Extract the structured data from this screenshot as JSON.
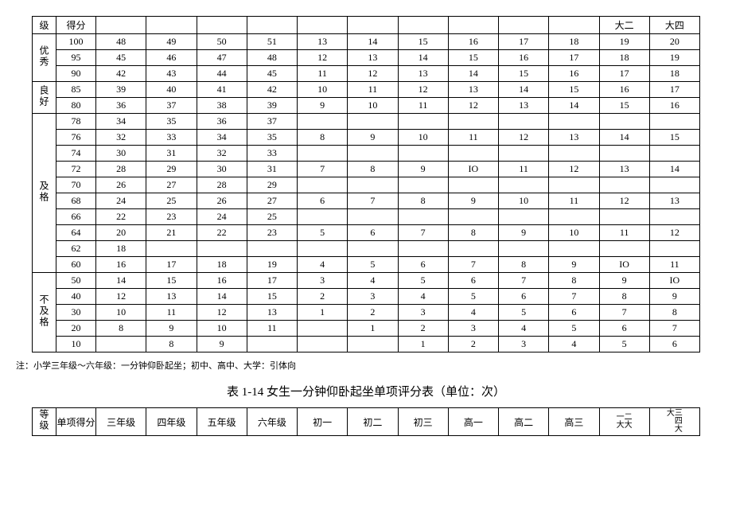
{
  "table1": {
    "header": {
      "level": "级",
      "score": "得分",
      "cols_extra": [
        "大二",
        "大四"
      ]
    },
    "groups": [
      {
        "label": "优秀",
        "rows": [
          {
            "score": "100",
            "vals": [
              "48",
              "49",
              "50",
              "51",
              "13",
              "14",
              "15",
              "16",
              "17",
              "18",
              "19",
              "20"
            ]
          },
          {
            "score": "95",
            "vals": [
              "45",
              "46",
              "47",
              "48",
              "12",
              "13",
              "14",
              "15",
              "16",
              "17",
              "18",
              "19"
            ]
          },
          {
            "score": "90",
            "vals": [
              "42",
              "43",
              "44",
              "45",
              "11",
              "12",
              "13",
              "14",
              "15",
              "16",
              "17",
              "18"
            ]
          }
        ]
      },
      {
        "label": "良好",
        "rows": [
          {
            "score": "85",
            "vals": [
              "39",
              "40",
              "41",
              "42",
              "10",
              "11",
              "12",
              "13",
              "14",
              "15",
              "16",
              "17"
            ]
          },
          {
            "score": "80",
            "vals": [
              "36",
              "37",
              "38",
              "39",
              "9",
              "10",
              "11",
              "12",
              "13",
              "14",
              "15",
              "16"
            ]
          }
        ]
      },
      {
        "label": "及格",
        "rows": [
          {
            "score": "78",
            "vals": [
              "34",
              "35",
              "36",
              "37",
              "",
              "",
              "",
              "",
              "",
              "",
              "",
              ""
            ]
          },
          {
            "score": "76",
            "vals": [
              "32",
              "33",
              "34",
              "35",
              "8",
              "9",
              "10",
              "11",
              "12",
              "13",
              "14",
              "15"
            ]
          },
          {
            "score": "74",
            "vals": [
              "30",
              "31",
              "32",
              "33",
              "",
              "",
              "",
              "",
              "",
              "",
              "",
              ""
            ]
          },
          {
            "score": "72",
            "vals": [
              "28",
              "29",
              "30",
              "31",
              "7",
              "8",
              "9",
              "IO",
              "11",
              "12",
              "13",
              "14"
            ]
          },
          {
            "score": "70",
            "vals": [
              "26",
              "27",
              "28",
              "29",
              "",
              "",
              "",
              "",
              "",
              "",
              "",
              ""
            ]
          },
          {
            "score": "68",
            "vals": [
              "24",
              "25",
              "26",
              "27",
              "6",
              "7",
              "8",
              "9",
              "10",
              "11",
              "12",
              "13"
            ]
          },
          {
            "score": "66",
            "vals": [
              "22",
              "23",
              "24",
              "25",
              "",
              "",
              "",
              "",
              "",
              "",
              "",
              ""
            ]
          },
          {
            "score": "64",
            "vals": [
              "20",
              "21",
              "22",
              "23",
              "5",
              "6",
              "7",
              "8",
              "9",
              "10",
              "11",
              "12"
            ]
          },
          {
            "score": "62",
            "vals": [
              "18",
              "",
              "",
              "",
              "",
              "",
              "",
              "",
              "",
              "",
              "",
              ""
            ]
          },
          {
            "score": "60",
            "vals": [
              "16",
              "17",
              "18",
              "19",
              "4",
              "5",
              "6",
              "7",
              "8",
              "9",
              "IO",
              "11"
            ]
          }
        ]
      },
      {
        "label": "不及格",
        "rows": [
          {
            "score": "50",
            "vals": [
              "14",
              "15",
              "16",
              "17",
              "3",
              "4",
              "5",
              "6",
              "7",
              "8",
              "9",
              "IO"
            ]
          },
          {
            "score": "40",
            "vals": [
              "12",
              "13",
              "14",
              "15",
              "2",
              "3",
              "4",
              "5",
              "6",
              "7",
              "8",
              "9"
            ]
          },
          {
            "score": "30",
            "vals": [
              "10",
              "11",
              "12",
              "13",
              "1",
              "2",
              "3",
              "4",
              "5",
              "6",
              "7",
              "8"
            ]
          },
          {
            "score": "20",
            "vals": [
              "8",
              "9",
              "10",
              "11",
              "",
              "1",
              "2",
              "3",
              "4",
              "5",
              "6",
              "7"
            ]
          },
          {
            "score": "10",
            "vals": [
              "",
              "8",
              "9",
              "",
              "",
              "",
              "1",
              "2",
              "3",
              "4",
              "5",
              "6"
            ]
          }
        ]
      }
    ]
  },
  "note": "注：小学三年级～六年级：一分钟仰卧起坐；初中、高中、大学：引体向",
  "title2": "表 1-14 女生一分钟仰卧起坐单项评分表（单位：次）",
  "table2": {
    "header": {
      "level": "等级",
      "score": "单项得分",
      "cols": [
        "三年级",
        "四年级",
        "五年级",
        "六年级",
        "初一",
        "初二",
        "初三",
        "高一",
        "高二",
        "高三"
      ],
      "col11": {
        "upper": "一二",
        "lower": "大大"
      },
      "col12": {
        "upper": "大三",
        "mid": "四",
        "lower": "大"
      }
    }
  },
  "colors": {
    "border": "#000000",
    "background": "#ffffff",
    "text": "#000000"
  }
}
